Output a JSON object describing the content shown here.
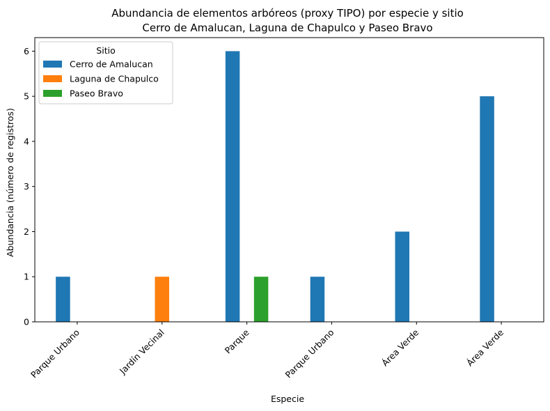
{
  "chart_data": {
    "type": "bar",
    "title": "Abundancia de elementos arbóreos (proxy TIPO) por especie y sitio",
    "subtitle": "Cerro de Amalucan, Laguna de Chapulco y Paseo Bravo",
    "xlabel": "Especie",
    "ylabel": "Abundancia (número de registros)",
    "categories": [
      "Parque Urbano",
      "Jardín Vecinal",
      "Parque",
      "Parque Urbano",
      "Área  Verde",
      "Área Verde"
    ],
    "series": [
      {
        "name": "Cerro de Amalucan",
        "color": "#1f77b4",
        "values": [
          1,
          0,
          6,
          1,
          2,
          5
        ]
      },
      {
        "name": "Laguna de Chapulco",
        "color": "#ff7f0e",
        "values": [
          0,
          1,
          0,
          0,
          0,
          0
        ]
      },
      {
        "name": "Paseo Bravo",
        "color": "#2ca02c",
        "values": [
          0,
          0,
          1,
          0,
          0,
          0
        ]
      }
    ],
    "ylim": [
      0,
      6.3
    ],
    "yticks": [
      0,
      1,
      2,
      3,
      4,
      5,
      6
    ],
    "legend": {
      "title": "Sitio",
      "placement": "top-left"
    },
    "grid": false
  }
}
